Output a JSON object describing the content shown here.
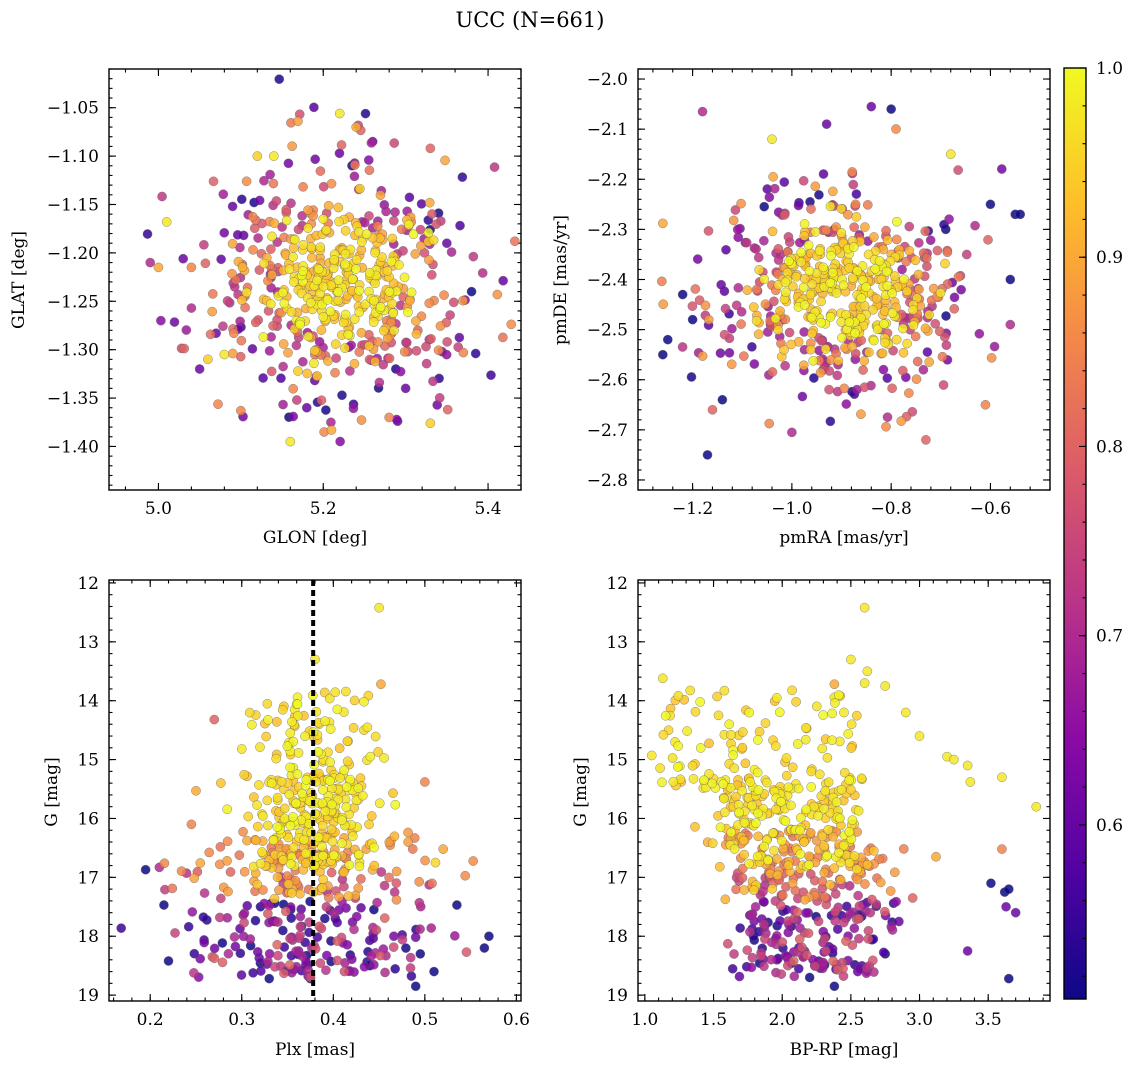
{
  "figure_title": "UCC (N=661)",
  "colormap": {
    "name": "plasma",
    "stops": [
      "#0d0887",
      "#5302a3",
      "#8b0aa5",
      "#b83289",
      "#db5c68",
      "#f48849",
      "#febd2a",
      "#f0f921"
    ],
    "range": [
      0.5,
      1.0
    ],
    "ticks": [
      "0.6",
      "0.7",
      "0.8",
      "0.9",
      "1.0"
    ]
  },
  "chart_data": [
    {
      "type": "scatter",
      "xlabel": "GLON [deg]",
      "ylabel": "GLAT [deg]",
      "xlim": [
        4.94,
        5.44
      ],
      "ylim": [
        -1.445,
        -1.01
      ],
      "xticks": [
        "5.0",
        "5.2",
        "5.4"
      ],
      "yticks": [
        "−1.05",
        "−1.10",
        "−1.15",
        "−1.20",
        "−1.25",
        "−1.30",
        "−1.35",
        "−1.40"
      ],
      "x_center": 5.22,
      "y_center": -1.23,
      "x_spread": 0.075,
      "y_spread": 0.06,
      "points": [
        [
          4.99,
          -1.21,
          0.7
        ],
        [
          5.0,
          -1.215,
          0.9
        ],
        [
          5.01,
          -1.168,
          0.98
        ],
        [
          5.03,
          -1.206,
          0.6
        ],
        [
          5.04,
          -1.257,
          0.7
        ],
        [
          5.04,
          -1.215,
          0.85
        ],
        [
          5.05,
          -1.32,
          0.6
        ],
        [
          5.06,
          -1.31,
          0.95
        ],
        [
          5.07,
          -1.283,
          0.6
        ],
        [
          5.08,
          -1.305,
          0.98
        ],
        [
          5.09,
          -1.152,
          0.6
        ],
        [
          5.12,
          -1.1,
          0.95
        ],
        [
          5.14,
          -1.1,
          0.98
        ],
        [
          5.2,
          -1.165,
          0.98
        ],
        [
          5.22,
          -1.056,
          0.98
        ],
        [
          5.24,
          -1.07,
          0.9
        ],
        [
          5.26,
          -1.085,
          0.6
        ],
        [
          5.33,
          -1.092,
          0.8
        ],
        [
          5.35,
          -1.19,
          0.6
        ],
        [
          5.38,
          -1.24,
          0.5
        ],
        [
          5.37,
          -1.303,
          0.85
        ],
        [
          5.33,
          -1.376,
          0.95
        ],
        [
          5.16,
          -1.395,
          0.98
        ],
        [
          5.21,
          -1.383,
          0.9
        ],
        [
          5.1,
          -1.363,
          0.85
        ],
        [
          5.18,
          -1.36,
          0.6
        ],
        [
          5.28,
          -1.37,
          0.85
        ],
        [
          5.3,
          -1.34,
          0.6
        ]
      ]
    },
    {
      "type": "scatter",
      "xlabel": "pmRA [mas/yr]",
      "ylabel": "pmDE [mas/yr]",
      "xlim": [
        -1.31,
        -0.48
      ],
      "ylim": [
        -2.82,
        -1.98
      ],
      "xticks": [
        "−1.2",
        "−1.0",
        "−0.8",
        "−0.6"
      ],
      "yticks": [
        "−2.0",
        "−2.1",
        "−2.2",
        "−2.3",
        "−2.4",
        "−2.5",
        "−2.6",
        "−2.7",
        "−2.8"
      ],
      "x_center": -0.9,
      "y_center": -2.42,
      "x_spread": 0.13,
      "y_spread": 0.1,
      "points": [
        [
          -1.26,
          -2.288,
          0.9
        ],
        [
          -1.25,
          -2.52,
          0.5
        ],
        [
          -1.26,
          -2.55,
          0.5
        ],
        [
          -1.18,
          -2.065,
          0.7
        ],
        [
          -1.17,
          -2.75,
          0.5
        ],
        [
          -1.0,
          -2.705,
          0.7
        ],
        [
          -0.73,
          -2.72,
          0.8
        ],
        [
          -0.84,
          -2.055,
          0.6
        ],
        [
          -0.8,
          -2.06,
          0.5
        ],
        [
          -0.55,
          -2.27,
          0.5
        ],
        [
          -0.54,
          -2.27,
          0.5
        ],
        [
          -0.56,
          -2.4,
          0.5
        ],
        [
          -0.56,
          -2.49,
          0.7
        ],
        [
          -0.61,
          -2.65,
          0.85
        ],
        [
          -0.6,
          -2.25,
          0.5
        ],
        [
          -1.22,
          -2.43,
          0.5
        ],
        [
          -1.2,
          -2.48,
          0.5
        ],
        [
          -1.16,
          -2.66,
          0.8
        ],
        [
          -1.14,
          -2.64,
          0.5
        ],
        [
          -1.04,
          -2.12,
          0.98
        ],
        [
          -0.93,
          -2.09,
          0.6
        ],
        [
          -0.68,
          -2.15,
          0.98
        ],
        [
          -0.69,
          -2.3,
          0.5
        ]
      ]
    },
    {
      "type": "scatter",
      "xlabel": "Plx [mas]",
      "ylabel": "G [mag]",
      "xlim": [
        0.155,
        0.605
      ],
      "ylim": [
        19.1,
        11.95
      ],
      "xticks": [
        "0.2",
        "0.3",
        "0.4",
        "0.5",
        "0.6"
      ],
      "yticks": [
        "12",
        "13",
        "14",
        "15",
        "16",
        "17",
        "18",
        "19"
      ],
      "reference_line_x": 0.378,
      "points": [
        [
          0.45,
          12.42,
          0.98
        ],
        [
          0.38,
          13.3,
          0.98
        ],
        [
          0.452,
          13.72,
          0.9
        ],
        [
          0.27,
          14.32,
          0.8
        ],
        [
          0.3,
          14.82,
          0.98
        ],
        [
          0.195,
          16.87,
          0.5
        ],
        [
          0.21,
          16.83,
          0.7
        ],
        [
          0.215,
          17.47,
          0.5
        ],
        [
          0.22,
          18.42,
          0.5
        ],
        [
          0.25,
          15.53,
          0.9
        ],
        [
          0.245,
          16.1,
          0.85
        ],
        [
          0.33,
          18.72,
          0.5
        ],
        [
          0.375,
          18.72,
          0.5
        ],
        [
          0.49,
          18.85,
          0.5
        ],
        [
          0.5,
          15.38,
          0.85
        ],
        [
          0.52,
          16.52,
          0.9
        ],
        [
          0.57,
          18.0,
          0.5
        ],
        [
          0.565,
          18.2,
          0.5
        ],
        [
          0.535,
          17.47,
          0.5
        ],
        [
          0.51,
          18.6,
          0.5
        ],
        [
          0.495,
          18.3,
          0.5
        ],
        [
          0.44,
          18.5,
          0.5
        ]
      ]
    },
    {
      "type": "scatter",
      "xlabel": "BP-RP [mag]",
      "ylabel": "G [mag]",
      "xlim": [
        0.95,
        3.95
      ],
      "ylim": [
        19.1,
        11.95
      ],
      "xticks": [
        "1.0",
        "1.5",
        "2.0",
        "2.5",
        "3.0",
        "3.5"
      ],
      "yticks": [
        "12",
        "13",
        "14",
        "15",
        "16",
        "17",
        "18",
        "19"
      ],
      "points": [
        [
          2.6,
          12.42,
          0.98
        ],
        [
          2.5,
          13.3,
          0.98
        ],
        [
          2.62,
          13.5,
          0.98
        ],
        [
          2.6,
          13.7,
          0.98
        ],
        [
          2.75,
          13.75,
          0.98
        ],
        [
          1.13,
          13.62,
          0.98
        ],
        [
          1.05,
          14.93,
          0.98
        ],
        [
          2.38,
          13.72,
          0.9
        ],
        [
          2.45,
          14.2,
          0.98
        ],
        [
          2.9,
          14.2,
          0.98
        ],
        [
          3.0,
          14.6,
          0.98
        ],
        [
          3.2,
          14.95,
          0.98
        ],
        [
          3.25,
          15.0,
          0.98
        ],
        [
          3.35,
          15.1,
          0.98
        ],
        [
          3.37,
          15.38,
          0.98
        ],
        [
          3.6,
          15.3,
          0.98
        ],
        [
          3.85,
          15.8,
          0.98
        ],
        [
          3.6,
          16.52,
          0.85
        ],
        [
          3.12,
          16.65,
          0.9
        ],
        [
          3.52,
          17.1,
          0.5
        ],
        [
          3.62,
          17.25,
          0.5
        ],
        [
          3.65,
          17.2,
          0.5
        ],
        [
          3.63,
          17.5,
          0.6
        ],
        [
          3.7,
          17.6,
          0.6
        ],
        [
          3.35,
          18.25,
          0.6
        ],
        [
          3.65,
          18.72,
          0.5
        ],
        [
          2.38,
          18.85,
          0.5
        ],
        [
          2.2,
          18.7,
          0.5
        ],
        [
          2.95,
          17.35,
          0.8
        ],
        [
          2.85,
          17.75,
          0.6
        ],
        [
          2.75,
          18.3,
          0.5
        ],
        [
          2.55,
          18.6,
          0.6
        ]
      ]
    }
  ],
  "axis_labels": {
    "p1_x": "GLON [deg]",
    "p1_y": "GLAT [deg]",
    "p2_x": "pmRA [mas/yr]",
    "p2_y": "pmDE [mas/yr]",
    "p3_x": "Plx [mas]",
    "p3_y": "G [mag]",
    "p4_x": "BP-RP [mag]",
    "p4_y": "G [mag]"
  }
}
